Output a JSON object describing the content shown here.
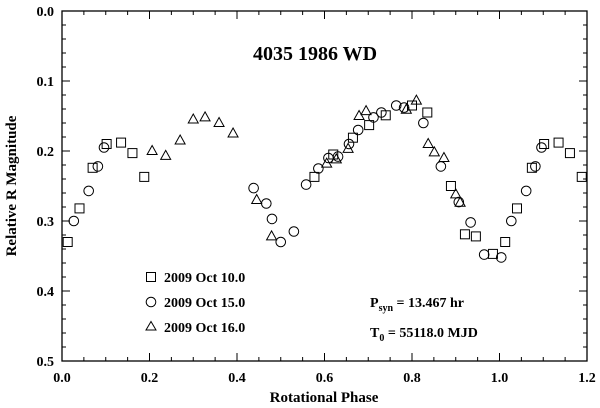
{
  "chart_data": {
    "type": "scatter",
    "title": "4035 1986 WD",
    "xlabel": "Rotational Phase",
    "ylabel": "Relative R Magnitude",
    "xlim": [
      0.0,
      1.2
    ],
    "ylim": [
      0.0,
      0.5
    ],
    "y_inverted": true,
    "x_ticks": [
      "0.0",
      "0.2",
      "0.4",
      "0.6",
      "0.8",
      "1.0",
      "1.2"
    ],
    "y_ticks": [
      "0.0",
      "0.1",
      "0.2",
      "0.3",
      "0.4",
      "0.5"
    ],
    "grid": false,
    "legend_position": "bottom-left",
    "series": [
      {
        "name": "2009 Oct 10.0",
        "marker": "square",
        "x": [
          0.013,
          0.04,
          0.07,
          0.102,
          0.135,
          0.161,
          0.188,
          0.577,
          0.62,
          0.665,
          0.702,
          0.74,
          0.8,
          0.835,
          0.889,
          0.921,
          0.946,
          0.985,
          1.013,
          1.04,
          1.074,
          1.102,
          1.135,
          1.161,
          1.188
        ],
        "y": [
          0.33,
          0.282,
          0.224,
          0.19,
          0.188,
          0.203,
          0.237,
          0.237,
          0.205,
          0.181,
          0.163,
          0.149,
          0.135,
          0.145,
          0.25,
          0.319,
          0.322,
          0.347,
          0.33,
          0.282,
          0.224,
          0.19,
          0.188,
          0.203,
          0.237
        ]
      },
      {
        "name": "2009 Oct 15.0",
        "marker": "circle",
        "x": [
          0.027,
          0.061,
          0.082,
          0.096,
          0.438,
          0.467,
          0.48,
          0.5,
          0.53,
          0.558,
          0.586,
          0.609,
          0.631,
          0.656,
          0.677,
          0.712,
          0.73,
          0.764,
          0.782,
          0.826,
          0.866,
          0.907,
          0.934,
          0.965,
          1.004,
          1.027,
          1.061,
          1.082,
          1.096
        ],
        "y": [
          0.3,
          0.257,
          0.222,
          0.195,
          0.253,
          0.275,
          0.297,
          0.33,
          0.315,
          0.248,
          0.225,
          0.21,
          0.208,
          0.19,
          0.17,
          0.152,
          0.145,
          0.135,
          0.138,
          0.16,
          0.222,
          0.273,
          0.302,
          0.348,
          0.352,
          0.3,
          0.257,
          0.222,
          0.195
        ]
      },
      {
        "name": "2009 Oct 16.0",
        "marker": "triangle",
        "x": [
          0.206,
          0.237,
          0.27,
          0.3,
          0.327,
          0.359,
          0.391,
          0.445,
          0.479,
          0.605,
          0.627,
          0.654,
          0.679,
          0.695,
          0.787,
          0.81,
          0.837,
          0.851,
          0.873,
          0.9,
          0.91
        ],
        "y": [
          0.2,
          0.207,
          0.185,
          0.155,
          0.152,
          0.16,
          0.175,
          0.27,
          0.322,
          0.218,
          0.212,
          0.197,
          0.15,
          0.143,
          0.141,
          0.128,
          0.19,
          0.202,
          0.21,
          0.262,
          0.274
        ]
      }
    ],
    "annotations": [
      {
        "text_main": "P",
        "text_sub": "syn",
        "text_rest": " = 13.467 hr"
      },
      {
        "text_main": "T",
        "text_sub": "0",
        "text_rest": " = 55118.0 MJD"
      }
    ]
  }
}
